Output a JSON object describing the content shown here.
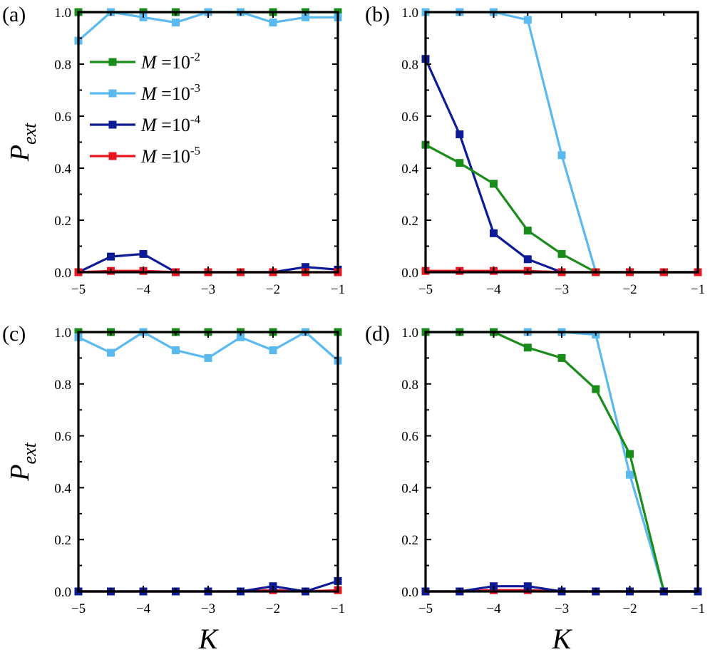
{
  "chart_data": [
    {
      "panel": "(a)",
      "type": "line",
      "ylabel_main": "P",
      "ylabel_sub": "ext",
      "xlabel": "",
      "xlim": [
        -5,
        -1
      ],
      "ylim": [
        0,
        1
      ],
      "x": [
        -5,
        -4.5,
        -4,
        -3.5,
        -3,
        -2.5,
        -2,
        -1.5,
        -1
      ],
      "xticks": [
        "−5",
        "−4",
        "−3",
        "−2",
        "−1"
      ],
      "yticks": [
        "0.0",
        "0.2",
        "0.4",
        "0.6",
        "0.8",
        "1.0"
      ],
      "series": [
        {
          "name": "M=10^-2",
          "color": "#1a8c1a",
          "values": [
            1.0,
            1.0,
            1.0,
            1.0,
            1.0,
            1.0,
            1.0,
            1.0,
            1.0
          ]
        },
        {
          "name": "M=10^-3",
          "color": "#5ab9ee",
          "values": [
            0.89,
            1.0,
            0.98,
            0.96,
            1.0,
            1.0,
            0.96,
            0.98,
            0.98
          ]
        },
        {
          "name": "M=10^-4",
          "color": "#0d1c96",
          "values": [
            0.0,
            0.06,
            0.07,
            0.0,
            0.0,
            0.0,
            0.0,
            0.02,
            0.01
          ]
        },
        {
          "name": "M=10^-5",
          "color": "#e8141e",
          "values": [
            0.0,
            0.005,
            0.005,
            0.0,
            0.0,
            0.0,
            0.0,
            0.0,
            0.0
          ]
        }
      ],
      "legend": {
        "position": "upper-left",
        "entries": [
          {
            "var": "M",
            "eq": " =10",
            "exp": "-2",
            "color": "#1a8c1a"
          },
          {
            "var": "M",
            "eq": " =10",
            "exp": "-3",
            "color": "#5ab9ee"
          },
          {
            "var": "M",
            "eq": " =10",
            "exp": "-4",
            "color": "#0d1c96"
          },
          {
            "var": "M",
            "eq": " =10",
            "exp": "-5",
            "color": "#e8141e"
          }
        ]
      }
    },
    {
      "panel": "(b)",
      "type": "line",
      "ylabel_main": "",
      "ylabel_sub": "",
      "xlabel": "",
      "xlim": [
        -5,
        -1
      ],
      "ylim": [
        0,
        1
      ],
      "x": [
        -5,
        -4.5,
        -4,
        -3.5,
        -3,
        -2.5,
        -2,
        -1.5,
        -1
      ],
      "xticks": [
        "−5",
        "−4",
        "−3",
        "−2",
        "−1"
      ],
      "yticks": [
        "0.0",
        "0.2",
        "0.4",
        "0.6",
        "0.8",
        "1.0"
      ],
      "series": [
        {
          "name": "M=10^-3",
          "color": "#5ab9ee",
          "values": [
            1.0,
            1.0,
            1.0,
            0.97,
            0.45,
            0.0,
            0.0,
            0.0,
            0.0
          ]
        },
        {
          "name": "M=10^-4",
          "color": "#0d1c96",
          "values": [
            0.82,
            0.53,
            0.15,
            0.05,
            0.0,
            0.0,
            0.0,
            0.0,
            0.0
          ]
        },
        {
          "name": "M=10^-2",
          "color": "#1a8c1a",
          "values": [
            0.49,
            0.42,
            0.34,
            0.16,
            0.07,
            0.0,
            0.0,
            0.0,
            0.0
          ]
        },
        {
          "name": "M=10^-5",
          "color": "#e8141e",
          "values": [
            0.005,
            0.005,
            0.005,
            0.005,
            0.0,
            0.0,
            0.0,
            0.0,
            0.0
          ]
        }
      ]
    },
    {
      "panel": "(c)",
      "type": "line",
      "ylabel_main": "P",
      "ylabel_sub": "ext",
      "xlabel": "K",
      "xlim": [
        -5,
        -1
      ],
      "ylim": [
        0,
        1
      ],
      "x": [
        -5,
        -4.5,
        -4,
        -3.5,
        -3,
        -2.5,
        -2,
        -1.5,
        -1
      ],
      "xticks": [
        "−5",
        "−4",
        "−3",
        "−2",
        "−1"
      ],
      "yticks": [
        "0.0",
        "0.2",
        "0.4",
        "0.6",
        "0.8",
        "1.0"
      ],
      "series": [
        {
          "name": "M=10^-2",
          "color": "#1a8c1a",
          "values": [
            1.0,
            1.0,
            1.0,
            1.0,
            1.0,
            1.0,
            1.0,
            1.0,
            1.0
          ]
        },
        {
          "name": "M=10^-3",
          "color": "#5ab9ee",
          "values": [
            0.98,
            0.92,
            1.0,
            0.93,
            0.9,
            0.98,
            0.93,
            1.0,
            0.89
          ]
        },
        {
          "name": "M=10^-5",
          "color": "#e8141e",
          "values": [
            0.0,
            0.0,
            0.0,
            0.0,
            0.0,
            0.0,
            0.005,
            0.0,
            0.005
          ]
        },
        {
          "name": "M=10^-4",
          "color": "#0d1c96",
          "values": [
            0.0,
            0.0,
            0.0,
            0.0,
            0.0,
            0.0,
            0.02,
            0.0,
            0.04
          ]
        }
      ]
    },
    {
      "panel": "(d)",
      "type": "line",
      "ylabel_main": "",
      "ylabel_sub": "",
      "xlabel": "K",
      "xlim": [
        -5,
        -1
      ],
      "ylim": [
        0,
        1
      ],
      "x": [
        -5,
        -4.5,
        -4,
        -3.5,
        -3,
        -2.5,
        -2,
        -1.5,
        -1
      ],
      "xticks": [
        "−5",
        "−4",
        "−3",
        "−2",
        "−1"
      ],
      "yticks": [
        "0.0",
        "0.2",
        "0.4",
        "0.6",
        "0.8",
        "1.0"
      ],
      "series": [
        {
          "name": "M=10^-3",
          "color": "#5ab9ee",
          "values": [
            1.0,
            1.0,
            1.0,
            1.0,
            1.0,
            0.99,
            0.45,
            0.0,
            0.0
          ]
        },
        {
          "name": "M=10^-2",
          "color": "#1a8c1a",
          "values": [
            1.0,
            1.0,
            1.0,
            0.94,
            0.9,
            0.78,
            0.53,
            0.0,
            0.0
          ]
        },
        {
          "name": "M=10^-5",
          "color": "#e8141e",
          "values": [
            0.0,
            0.0,
            0.005,
            0.005,
            0.0,
            0.0,
            0.0,
            0.0,
            0.0
          ]
        },
        {
          "name": "M=10^-4",
          "color": "#0d1c96",
          "values": [
            0.0,
            0.0,
            0.02,
            0.02,
            0.0,
            0.0,
            0.0,
            0.0,
            0.0
          ]
        }
      ]
    }
  ]
}
